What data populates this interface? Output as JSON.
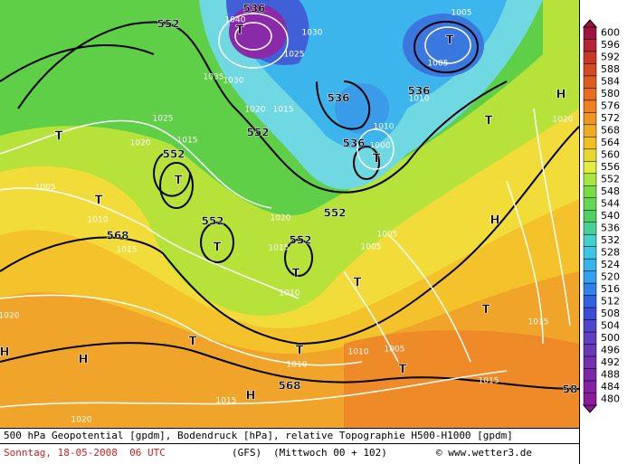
{
  "map": {
    "labels": [
      "552",
      "536",
      "T",
      "1040",
      "1030",
      "1025",
      "1035",
      "1030",
      "1005",
      "T",
      "1005",
      "536",
      "1010",
      "536",
      "552",
      "T",
      "H",
      "1020",
      "1025",
      "1020",
      "1015",
      "T",
      "1020",
      "1015",
      "552",
      "T",
      "536",
      "T",
      "1010",
      "1000",
      "1005",
      "T",
      "1010",
      "552",
      "H",
      "552",
      "T",
      "1020",
      "552",
      "1015",
      "1005",
      "1005",
      "568",
      "1015",
      "T",
      "T",
      "1010",
      "T",
      "1015",
      "1020",
      "H",
      "H",
      "T",
      "T",
      "1010",
      "1005",
      "1010",
      "T",
      "1015",
      "568",
      "1015",
      "H",
      "1020",
      "58"
    ]
  },
  "legend": {
    "values": [
      600,
      596,
      592,
      588,
      584,
      580,
      576,
      572,
      568,
      564,
      560,
      556,
      552,
      548,
      544,
      540,
      536,
      532,
      528,
      524,
      520,
      516,
      512,
      508,
      504,
      500,
      496,
      492,
      488,
      484,
      480
    ]
  },
  "footer": {
    "line1": "500 hPa Geopotential [gpdm], Bodendruck [hPa], relative Topographie H500-H1000 [gpdm]",
    "date": "Sonntag, 18-05-2008  06 UTC",
    "model": "(GFS)",
    "run": "(Mittwoch 00 + 102)",
    "copyright": "© www.wetter3.de"
  }
}
